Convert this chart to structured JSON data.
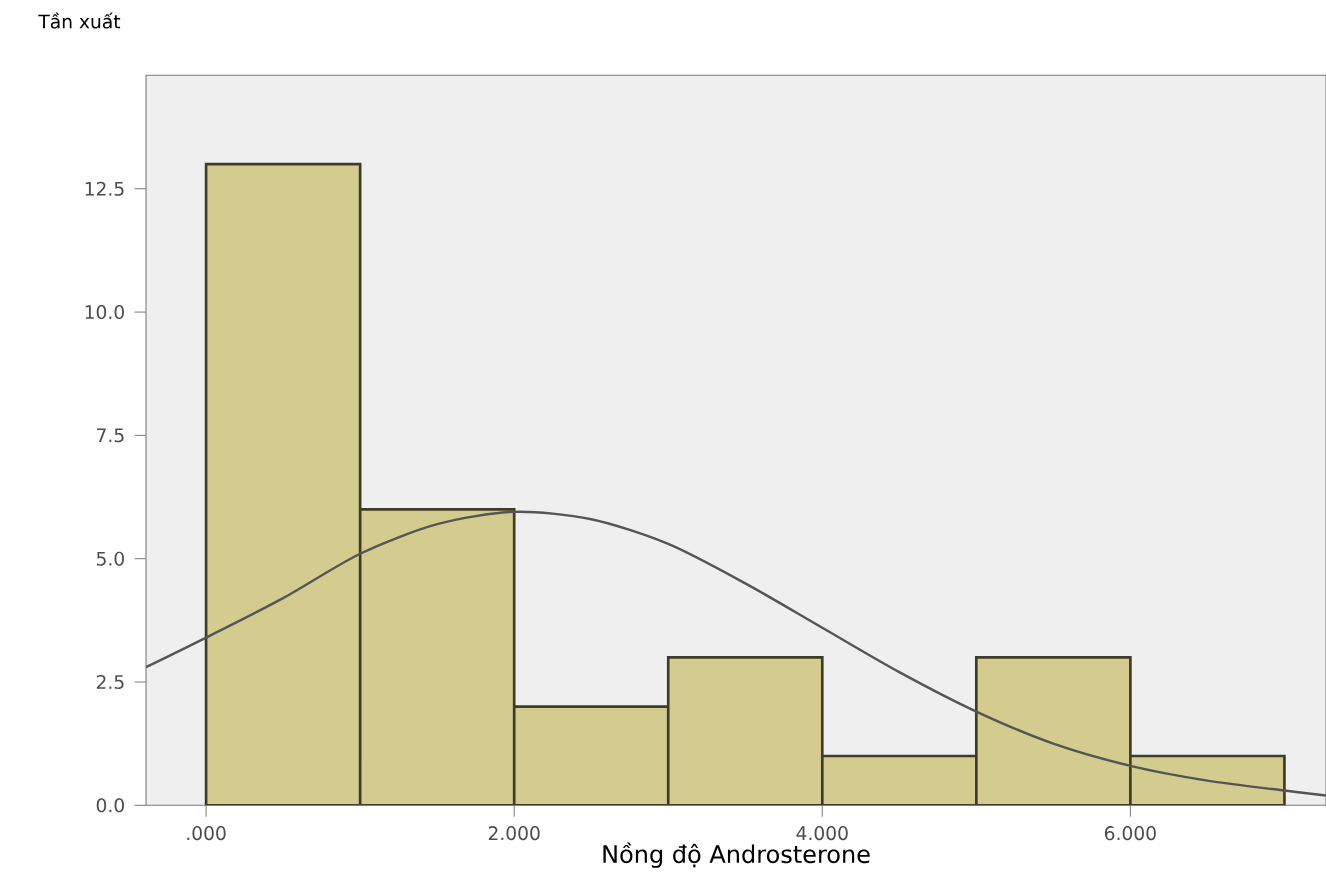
{
  "chart_data": {
    "type": "histogram",
    "xlabel": "Nồng độ Androsterone",
    "ylabel": "Tần xuất",
    "bins": [
      0,
      1,
      2,
      3,
      4,
      5,
      6,
      7
    ],
    "values": [
      13,
      6,
      2,
      3,
      1,
      3,
      1
    ],
    "color": "#d4cc8f",
    "series": [
      {
        "type": "line",
        "color": "#555555",
        "x": [
          -0.39,
          0,
          0.5,
          1,
          1.5,
          2,
          2.5,
          3,
          3.5,
          4,
          4.5,
          5,
          5.5,
          6,
          6.5,
          7,
          7.27
        ],
        "values": [
          2.8,
          3.4,
          4.2,
          5.1,
          5.7,
          5.95,
          5.8,
          5.3,
          4.5,
          3.6,
          2.7,
          1.9,
          1.25,
          0.8,
          0.5,
          0.3,
          0.2
        ]
      }
    ],
    "xlim": [
      -0.39,
      7.27
    ],
    "ylim": [
      0,
      14.8
    ],
    "xticks": [
      {
        "value": 0,
        "label": ".000"
      },
      {
        "value": 2,
        "label": "2.000"
      },
      {
        "value": 4,
        "label": "4.000"
      },
      {
        "value": 6,
        "label": "6.000"
      }
    ],
    "yticks": [
      {
        "value": 0,
        "label": "0.0"
      },
      {
        "value": 2.5,
        "label": "2.5"
      },
      {
        "value": 5,
        "label": "5.0"
      },
      {
        "value": 7.5,
        "label": "7.5"
      },
      {
        "value": 10,
        "label": "10.0"
      },
      12.5
    ]
  }
}
